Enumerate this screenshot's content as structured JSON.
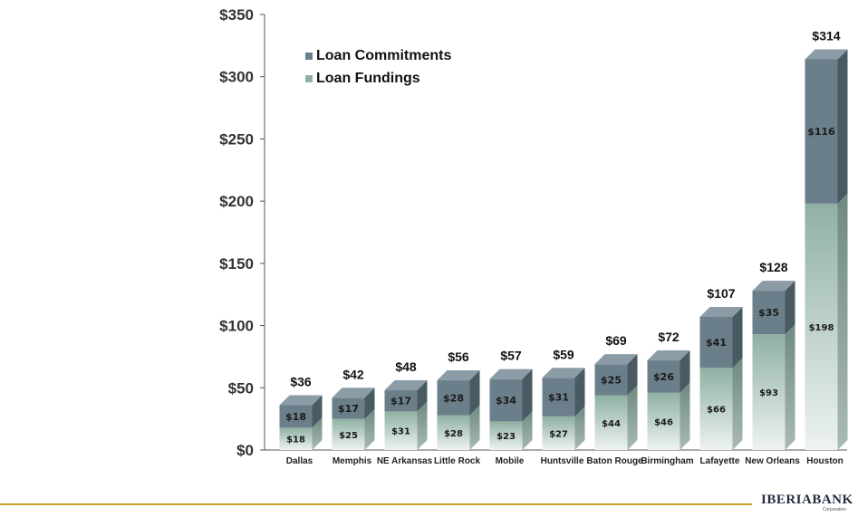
{
  "chart_data": {
    "type": "bar",
    "stacked": true,
    "categories": [
      "Dallas",
      "Memphis",
      "NE Arkansas",
      "Little Rock",
      "Mobile",
      "Huntsville",
      "Baton Rouge",
      "Birmingham",
      "Lafayette",
      "New Orleans",
      "Houston"
    ],
    "series": [
      {
        "name": "Loan Fundings",
        "values": [
          18,
          25,
          31,
          28,
          23,
          27,
          44,
          46,
          66,
          93,
          198
        ],
        "labels": [
          "$18",
          "$25",
          "$31",
          "$28",
          "$23",
          "$27",
          "$44",
          "$46",
          "$66",
          "$93",
          "$198"
        ]
      },
      {
        "name": "Loan Commitments",
        "values": [
          18,
          17,
          17,
          28,
          34,
          31,
          25,
          26,
          41,
          35,
          116
        ],
        "labels": [
          "$18",
          "$17",
          "$17",
          "$28",
          "$34",
          "$31",
          "$25",
          "$26",
          "$41",
          "$35",
          "$116"
        ]
      }
    ],
    "totals": [
      36,
      42,
      48,
      56,
      57,
      59,
      69,
      72,
      107,
      128,
      314
    ],
    "total_labels": [
      "$36",
      "$42",
      "$48",
      "$56",
      "$57",
      "$59",
      "$69",
      "$72",
      "$107",
      "$128",
      "$314"
    ],
    "yticks": [
      0,
      50,
      100,
      150,
      200,
      250,
      300,
      350
    ],
    "ytick_labels": [
      "$0",
      "$50",
      "$100",
      "$150",
      "$200",
      "$250",
      "$300",
      "$350"
    ],
    "ylim": [
      0,
      350
    ],
    "legend": [
      "Loan Commitments",
      "Loan Fundings"
    ],
    "legend_position": "top-left",
    "title": "",
    "xlabel": "",
    "ylabel": ""
  },
  "colors": {
    "commitments_front": "#6b7f8b",
    "commitments_top": "#8b9ca6",
    "commitments_side": "#4a5a63",
    "fundings_top_grad": "#8fb0a3",
    "fundings_bottom_grad": "#e7efeb",
    "fundings_side": "#7a8f87",
    "axis": "#555555",
    "footer_line": "#c9a227"
  },
  "footer": {
    "brand": "IBERIABANK",
    "subtitle": "Corporation"
  }
}
